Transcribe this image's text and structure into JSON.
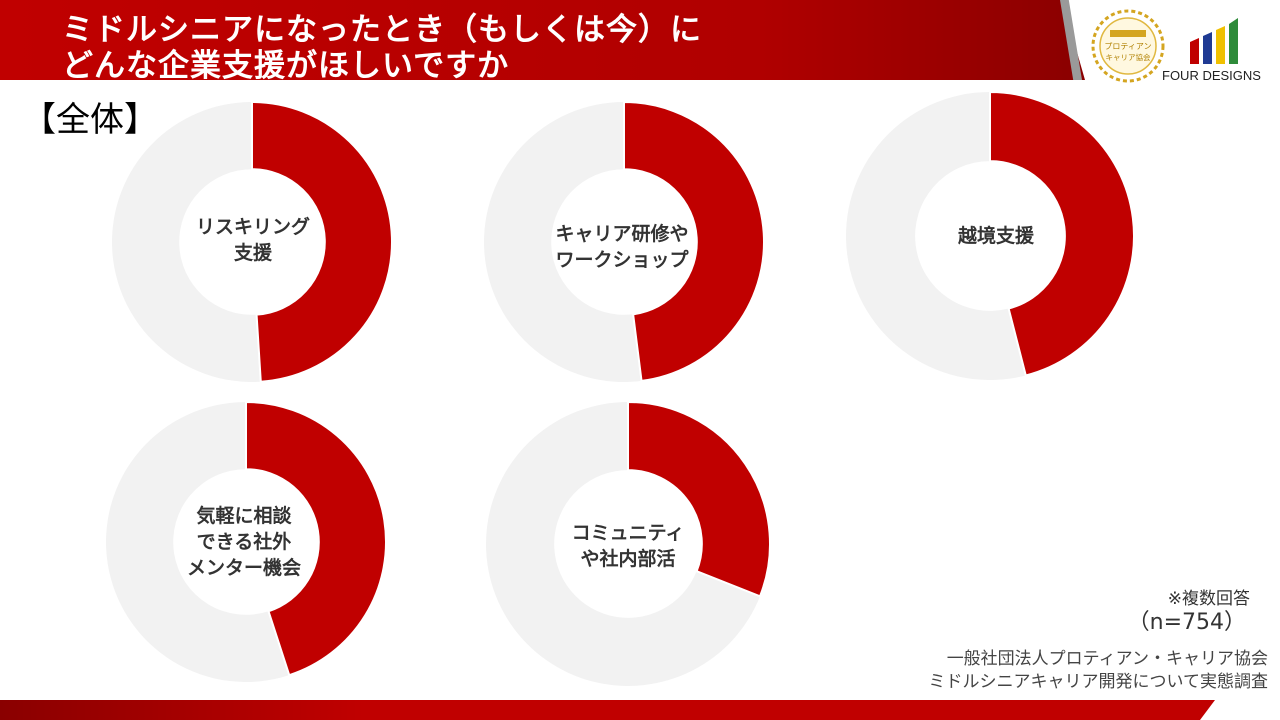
{
  "header": {
    "title_line1": "ミドルシニアになったとき（もしくは今）に",
    "title_line2": "どんな企業支援がほしいですか"
  },
  "section_label": "【全体】",
  "badge": {
    "text": "一般社団法人\nプロティアン\nキャリア協会"
  },
  "brand": {
    "name": "FOUR DESIGNS"
  },
  "chart_data": {
    "type": "pie",
    "variant": "donut",
    "unit": "%",
    "categories": [
      "リスキリング\n支援",
      "キャリア研修や\nワークショップ",
      "越境支援",
      "気軽に相談\nできる社外\nメンター機会",
      "コミュニティ\nや社内部活"
    ],
    "values": [
      49,
      48,
      46,
      45,
      31
    ],
    "colors": {
      "value": "#c00000",
      "remainder": "#f2f2f2"
    }
  },
  "notes": {
    "multi_answer": "※複数回答",
    "sample_size": "（n=754）"
  },
  "source": {
    "line1": "一般社団法人プロティアン・キャリア協会",
    "line2": "ミドルシニアキャリア開発について実態調査"
  }
}
